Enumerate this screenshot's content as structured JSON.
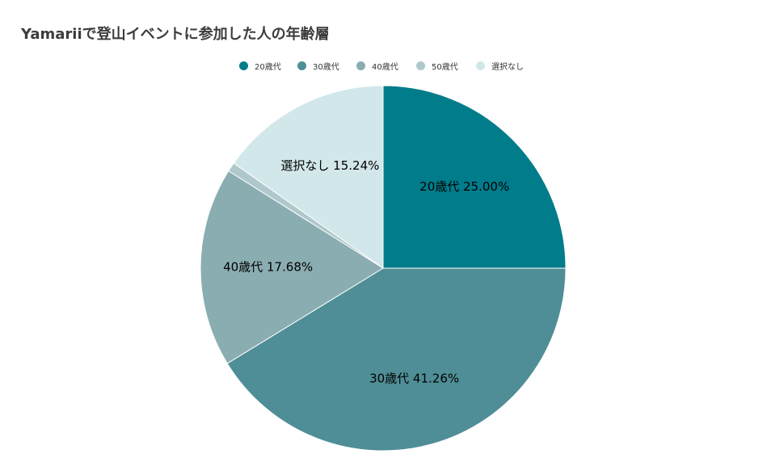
{
  "chart_data": {
    "type": "pie",
    "title": "Yamariiで登山イベントに参加した人の年齢層",
    "legend_position": "top",
    "slices": [
      {
        "label": "20歳代",
        "value": 25.0,
        "display": "25.00%",
        "color": "#007c8b"
      },
      {
        "label": "30歳代",
        "value": 41.26,
        "display": "41.26%",
        "color": "#4f8e96"
      },
      {
        "label": "40歳代",
        "value": 17.68,
        "display": "17.68%",
        "color": "#8aadb2"
      },
      {
        "label": "50歳代",
        "value": 0.82,
        "display": "",
        "color": "#afc8cb"
      },
      {
        "label": "選択なし",
        "value": 15.24,
        "display": "15.24%",
        "color": "#d2e7ea"
      }
    ]
  }
}
